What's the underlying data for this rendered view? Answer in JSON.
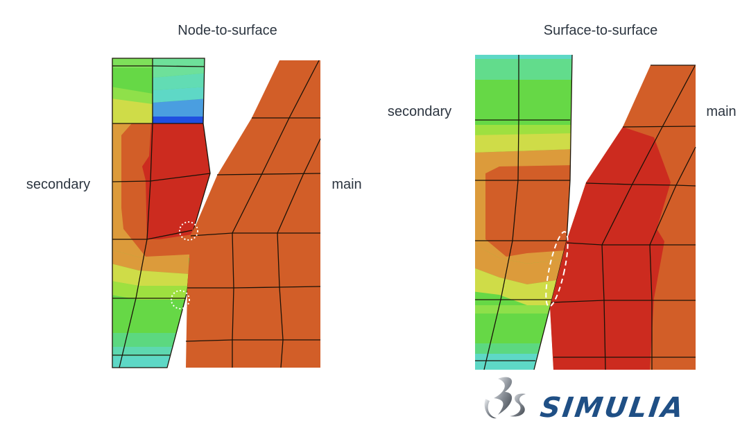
{
  "panels": [
    {
      "title": "Node-to-surface",
      "left_label": "secondary",
      "right_label": "main"
    },
    {
      "title": "Surface-to-surface",
      "left_label": "secondary",
      "right_label": "main"
    }
  ],
  "logo": {
    "text": "SIMULIA",
    "color": "#1f4f85"
  },
  "colors": {
    "red": "#cc2b1f",
    "orange": "#d25e28",
    "light_orange": "#dc9b3b",
    "yellow": "#cfdc48",
    "green": "#66d846",
    "teal": "#5ed8c6",
    "blue": "#4a9ee0",
    "dark_blue": "#1f4fe0"
  }
}
